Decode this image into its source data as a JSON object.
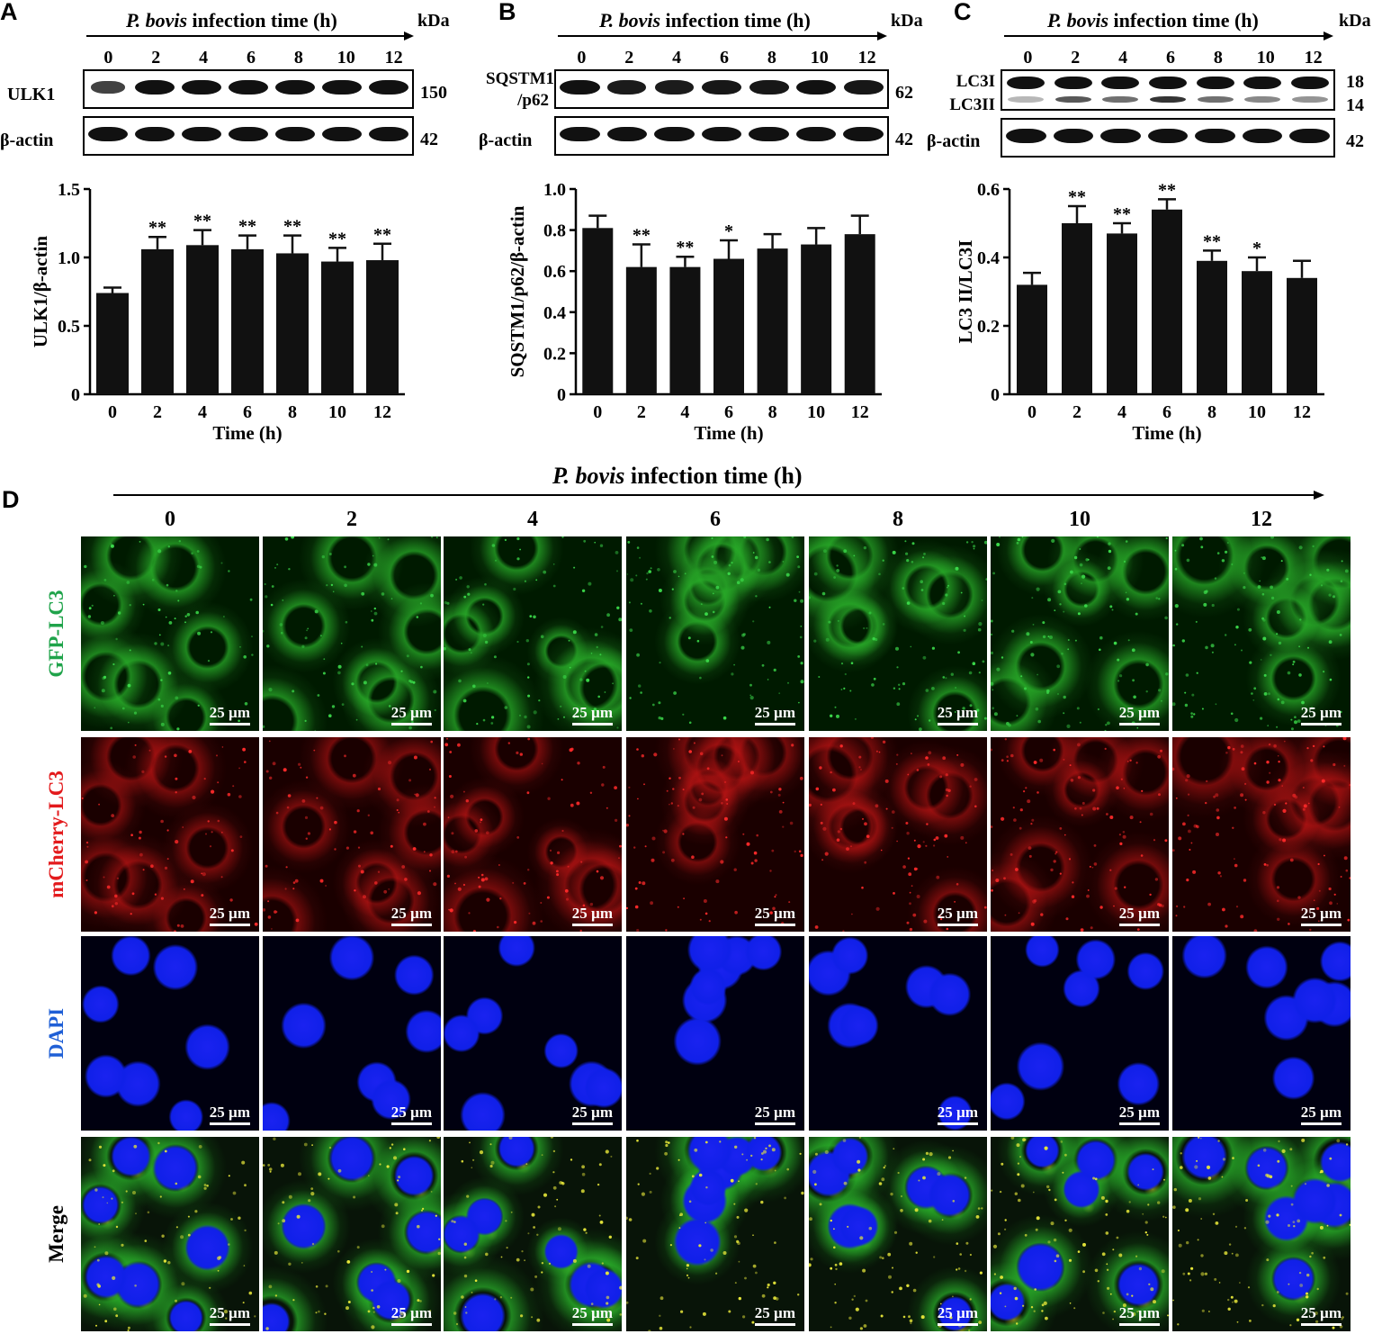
{
  "panelA": {
    "letter": "A",
    "header_italic": "P. bovis",
    "header_rest": " infection time (h)",
    "kda": "kDa",
    "lanes": [
      "0",
      "2",
      "4",
      "6",
      "8",
      "10",
      "12"
    ],
    "blots": [
      {
        "label": "ULK1",
        "kda": "150",
        "intensity": [
          0.55,
          1,
          1,
          1,
          1,
          1,
          1
        ],
        "double": false
      },
      {
        "label": "β-actin",
        "kda": "42",
        "intensity": [
          1,
          1,
          1,
          1,
          1,
          1,
          1
        ],
        "double": false
      }
    ]
  },
  "panelB": {
    "letter": "B",
    "header_italic": "P. bovis",
    "header_rest": " infection time (h)",
    "kda": "kDa",
    "lanes": [
      "0",
      "2",
      "4",
      "6",
      "8",
      "10",
      "12"
    ],
    "blots": [
      {
        "label_line1": "SQSTM1",
        "label_line2": "/p62",
        "kda": "62",
        "intensity": [
          1,
          0.9,
          0.9,
          0.95,
          0.95,
          1,
          0.95
        ],
        "double": false
      },
      {
        "label": "β-actin",
        "kda": "42",
        "intensity": [
          1,
          1,
          1,
          1,
          1,
          1,
          1
        ],
        "double": false
      }
    ]
  },
  "panelC": {
    "letter": "C",
    "header_italic": "P. bovis",
    "header_rest": " infection time (h)",
    "kda": "kDa",
    "lanes": [
      "0",
      "2",
      "4",
      "6",
      "8",
      "10",
      "12"
    ],
    "blots": [
      {
        "label_line1": "LC3I",
        "label_line2": "LC3II",
        "kda_line1": "18",
        "kda_line2": "14",
        "intensity": [
          1,
          1,
          1,
          1,
          1,
          1,
          1
        ],
        "lower": [
          0.3,
          0.7,
          0.6,
          0.85,
          0.6,
          0.5,
          0.45
        ],
        "double": true
      },
      {
        "label": "β-actin",
        "kda": "42",
        "intensity": [
          1,
          1,
          1,
          1,
          1,
          1,
          1
        ],
        "double": false
      }
    ]
  },
  "chart_data": [
    {
      "type": "bar",
      "panel": "A",
      "xlabel": "Time (h)",
      "ylabel": "ULK1/β-actin",
      "categories": [
        "0",
        "2",
        "4",
        "6",
        "8",
        "10",
        "12"
      ],
      "values": [
        0.74,
        1.06,
        1.09,
        1.06,
        1.03,
        0.97,
        0.98
      ],
      "errors": [
        0.04,
        0.09,
        0.11,
        0.1,
        0.13,
        0.1,
        0.12
      ],
      "significance": [
        "",
        "**",
        "**",
        "**",
        "**",
        "**",
        "**"
      ],
      "ylim": [
        0,
        1.5
      ],
      "yticks": [
        "0",
        "0.5",
        "1.0",
        "1.5"
      ],
      "ytick_values": [
        0,
        0.5,
        1.0,
        1.5
      ]
    },
    {
      "type": "bar",
      "panel": "B",
      "xlabel": "Time (h)",
      "ylabel": "SQSTM1/p62/β-actin",
      "categories": [
        "0",
        "2",
        "4",
        "6",
        "8",
        "10",
        "12"
      ],
      "values": [
        0.81,
        0.62,
        0.62,
        0.66,
        0.71,
        0.73,
        0.78
      ],
      "errors": [
        0.06,
        0.11,
        0.05,
        0.09,
        0.07,
        0.08,
        0.09
      ],
      "significance": [
        "",
        "**",
        "**",
        "*",
        "",
        "",
        ""
      ],
      "ylim": [
        0,
        1.0
      ],
      "yticks": [
        "0",
        "0.2",
        "0.4",
        "0.6",
        "0.8",
        "1.0"
      ],
      "ytick_values": [
        0,
        0.2,
        0.4,
        0.6,
        0.8,
        1.0
      ]
    },
    {
      "type": "bar",
      "panel": "C",
      "xlabel": "Time (h)",
      "ylabel": "LC3 II/LC3I",
      "categories": [
        "0",
        "2",
        "4",
        "6",
        "8",
        "10",
        "12"
      ],
      "values": [
        0.32,
        0.5,
        0.47,
        0.54,
        0.39,
        0.36,
        0.34
      ],
      "errors": [
        0.035,
        0.05,
        0.03,
        0.03,
        0.03,
        0.04,
        0.05
      ],
      "significance": [
        "",
        "**",
        "**",
        "**",
        "**",
        "*",
        ""
      ],
      "ylim": [
        0,
        0.6
      ],
      "yticks": [
        "0",
        "0.2",
        "0.4",
        "0.6"
      ],
      "ytick_values": [
        0,
        0.2,
        0.4,
        0.6
      ]
    }
  ],
  "panelD": {
    "letter": "D",
    "header_italic": "P. bovis",
    "header_rest": " infection time (h)",
    "columns": [
      "0",
      "2",
      "4",
      "6",
      "8",
      "10",
      "12"
    ],
    "rows": [
      {
        "label": "GFP-LC3",
        "color": "#1fa34a",
        "channel": "green"
      },
      {
        "label": "mCherry-LC3",
        "color": "#e31a1c",
        "channel": "red"
      },
      {
        "label": "DAPI",
        "color": "#1f5fd6",
        "channel": "blue"
      },
      {
        "label": "Merge",
        "color": "#000000",
        "channel": "merge"
      }
    ],
    "scalebar": "25 µm"
  }
}
